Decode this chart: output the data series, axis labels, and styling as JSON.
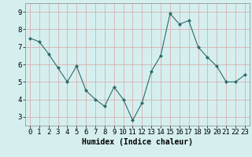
{
  "x": [
    0,
    1,
    2,
    3,
    4,
    5,
    6,
    7,
    8,
    9,
    10,
    11,
    12,
    13,
    14,
    15,
    16,
    17,
    18,
    19,
    20,
    21,
    22,
    23
  ],
  "y": [
    7.5,
    7.3,
    6.6,
    5.8,
    5.0,
    5.9,
    4.5,
    4.0,
    3.6,
    4.7,
    4.0,
    2.8,
    3.8,
    5.6,
    6.5,
    8.9,
    8.3,
    8.5,
    7.0,
    6.4,
    5.9,
    5.0,
    5.0,
    5.4
  ],
  "line_color": "#2d6b6b",
  "marker": "D",
  "marker_size": 2,
  "bg_color": "#d5efef",
  "grid_color_major": "#d8b0b0",
  "grid_color_minor": "#d8b0b0",
  "xlabel": "Humidex (Indice chaleur)",
  "xlim": [
    -0.5,
    23.5
  ],
  "ylim": [
    2.5,
    9.5
  ],
  "yticks": [
    3,
    4,
    5,
    6,
    7,
    8,
    9
  ],
  "xticks": [
    0,
    1,
    2,
    3,
    4,
    5,
    6,
    7,
    8,
    9,
    10,
    11,
    12,
    13,
    14,
    15,
    16,
    17,
    18,
    19,
    20,
    21,
    22,
    23
  ],
  "xlabel_fontsize": 7,
  "tick_fontsize": 6.5
}
